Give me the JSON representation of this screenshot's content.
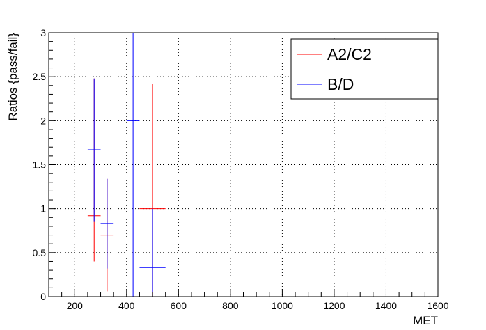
{
  "chart_data": {
    "type": "scatter",
    "style": "error-bars",
    "xlabel": "MET",
    "ylabel": "Ratios  {pass/fail}",
    "xlim": [
      100,
      1600
    ],
    "ylim": [
      0,
      3
    ],
    "x_ticks": [
      200,
      400,
      600,
      800,
      1000,
      1200,
      1400,
      1600
    ],
    "y_ticks": [
      0,
      0.5,
      1,
      1.5,
      2,
      2.5,
      3
    ],
    "x_tick_labels": [
      "200",
      "400",
      "600",
      "800",
      "1000",
      "1200",
      "1400",
      "1600"
    ],
    "y_tick_labels": [
      "0",
      "0.5",
      "1",
      "1.5",
      "2",
      "2.5",
      "3"
    ],
    "grid": true,
    "legend_position": "top-right",
    "series": [
      {
        "name": "A2/C2",
        "color": "#ff0000",
        "points": [
          {
            "x": 275,
            "xerr": 25,
            "y": 0.92,
            "ylo": 0.4,
            "yhi": 2.48
          },
          {
            "x": 325,
            "xerr": 25,
            "y": 0.7,
            "ylo": 0.06,
            "yhi": 1.34
          },
          {
            "x": 500,
            "xerr": 50,
            "y": 1.0,
            "ylo": 0.0,
            "yhi": 2.42
          }
        ]
      },
      {
        "name": "B/D",
        "color": "#0000ff",
        "points": [
          {
            "x": 275,
            "xerr": 25,
            "y": 1.67,
            "ylo": 0.85,
            "yhi": 2.48
          },
          {
            "x": 325,
            "xerr": 25,
            "y": 0.83,
            "ylo": 0.32,
            "yhi": 1.34
          },
          {
            "x": 425,
            "xerr": 25,
            "y": 2.0,
            "ylo": 0.0,
            "yhi": 3.0
          },
          {
            "x": 500,
            "xerr": 50,
            "y": 0.33,
            "ylo": 0.0,
            "yhi": 1.0
          }
        ]
      }
    ]
  }
}
